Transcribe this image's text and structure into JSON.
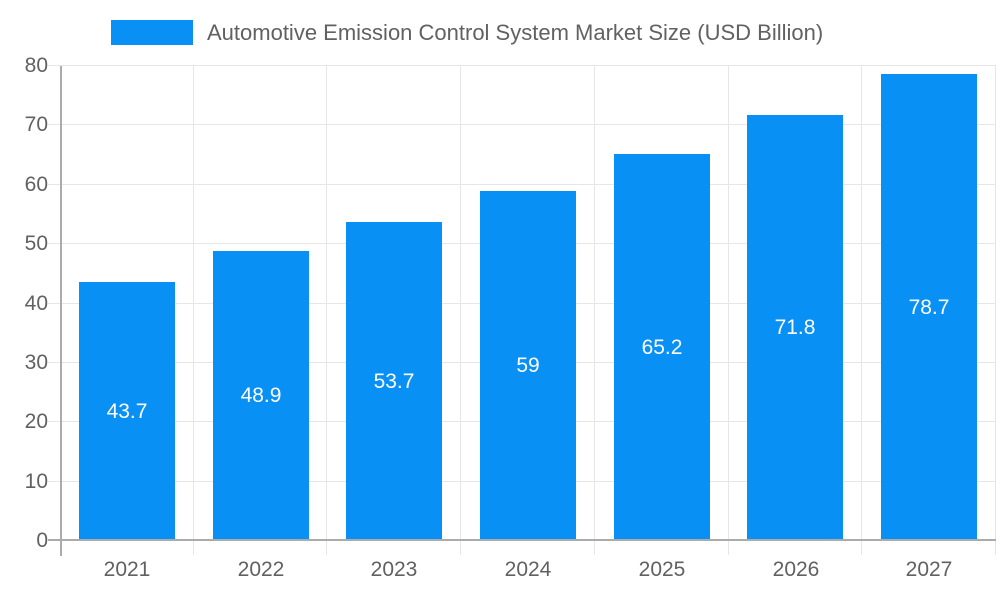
{
  "chart_data": {
    "type": "bar",
    "title": "Automotive Emission Control System Market Size (USD Billion)",
    "categories": [
      "2021",
      "2022",
      "2023",
      "2024",
      "2025",
      "2026",
      "2027"
    ],
    "values": [
      43.7,
      48.9,
      53.7,
      59,
      65.2,
      71.8,
      78.7
    ],
    "value_labels": [
      "43.7",
      "48.9",
      "53.7",
      "59",
      "65.2",
      "71.8",
      "78.7"
    ],
    "xlabel": "",
    "ylabel": "",
    "ylim": [
      0,
      80
    ],
    "yticks": [
      0,
      10,
      20,
      30,
      40,
      50,
      60,
      70,
      80
    ],
    "grid": true,
    "legend_position": "top",
    "colors": {
      "bar": "#0890f5",
      "axis_text": "#616161",
      "grid_line": "#e6e6e6",
      "axis_line": "#ababab",
      "value_label": "#ffffff",
      "background": "#ffffff"
    }
  }
}
